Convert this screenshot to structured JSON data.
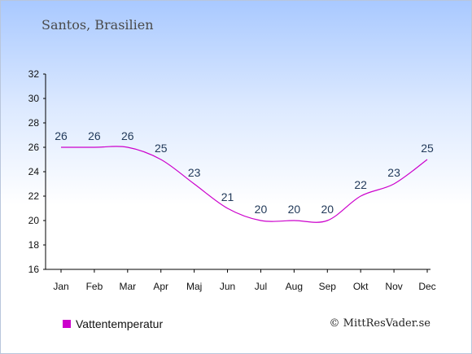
{
  "location": "Santos, Brasilien",
  "copyright": "© MittResVader.se",
  "legend": {
    "label": "Vattentemperatur",
    "color": "#cc00cc"
  },
  "chart_data": {
    "type": "line",
    "categories": [
      "Jan",
      "Feb",
      "Mar",
      "Apr",
      "Maj",
      "Jun",
      "Jul",
      "Aug",
      "Sep",
      "Okt",
      "Nov",
      "Dec"
    ],
    "series": [
      {
        "name": "Vattentemperatur",
        "values": [
          26,
          26,
          26,
          25,
          23,
          21,
          20,
          20,
          20,
          22,
          23,
          25
        ],
        "color": "#cc00cc"
      }
    ],
    "yticks": [
      16,
      18,
      20,
      22,
      24,
      26,
      28,
      30,
      32
    ],
    "ylim": [
      16,
      32
    ],
    "grid": false,
    "data_labels": true,
    "legend_position": "bottom-left"
  }
}
